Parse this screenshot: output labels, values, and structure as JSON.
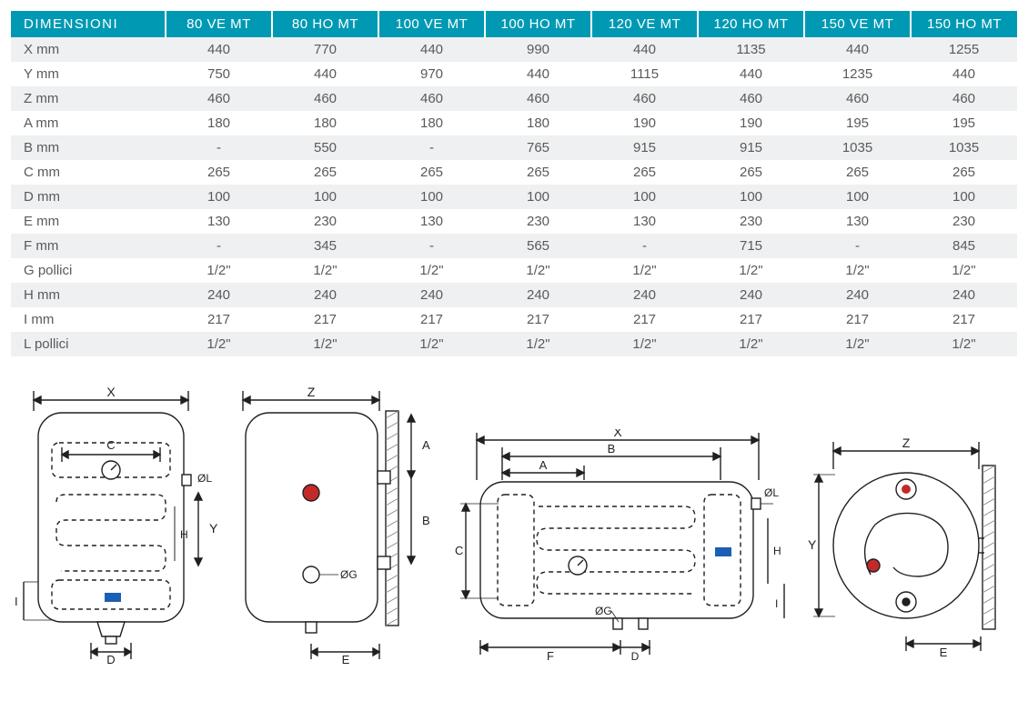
{
  "table": {
    "header_label": "DIMENSIONI",
    "columns": [
      "80 VE MT",
      "80 HO MT",
      "100 VE MT",
      "100 HO MT",
      "120 VE MT",
      "120 HO MT",
      "150 VE MT",
      "150 HO MT"
    ],
    "rows": [
      {
        "label": "X mm",
        "cells": [
          "440",
          "770",
          "440",
          "990",
          "440",
          "1135",
          "440",
          "1255"
        ]
      },
      {
        "label": "Y mm",
        "cells": [
          "750",
          "440",
          "970",
          "440",
          "1115",
          "440",
          "1235",
          "440"
        ]
      },
      {
        "label": "Z mm",
        "cells": [
          "460",
          "460",
          "460",
          "460",
          "460",
          "460",
          "460",
          "460"
        ]
      },
      {
        "label": "A mm",
        "cells": [
          "180",
          "180",
          "180",
          "180",
          "190",
          "190",
          "195",
          "195"
        ]
      },
      {
        "label": "B mm",
        "cells": [
          "-",
          "550",
          "-",
          "765",
          "915",
          "915",
          "1035",
          "1035"
        ]
      },
      {
        "label": "C mm",
        "cells": [
          "265",
          "265",
          "265",
          "265",
          "265",
          "265",
          "265",
          "265"
        ]
      },
      {
        "label": "D mm",
        "cells": [
          "100",
          "100",
          "100",
          "100",
          "100",
          "100",
          "100",
          "100"
        ]
      },
      {
        "label": "E mm",
        "cells": [
          "130",
          "230",
          "130",
          "230",
          "130",
          "230",
          "130",
          "230"
        ]
      },
      {
        "label": "F mm",
        "cells": [
          "-",
          "345",
          "-",
          "565",
          "-",
          "715",
          "-",
          "845"
        ]
      },
      {
        "label": "G pollici",
        "cells": [
          "1/2\"",
          "1/2\"",
          "1/2\"",
          "1/2\"",
          "1/2\"",
          "1/2\"",
          "1/2\"",
          "1/2\""
        ]
      },
      {
        "label": "H mm",
        "cells": [
          "240",
          "240",
          "240",
          "240",
          "240",
          "240",
          "240",
          "240"
        ]
      },
      {
        "label": "I mm",
        "cells": [
          "217",
          "217",
          "217",
          "217",
          "217",
          "217",
          "217",
          "217"
        ]
      },
      {
        "label": "L pollici",
        "cells": [
          "1/2\"",
          "1/2\"",
          "1/2\"",
          "1/2\"",
          "1/2\"",
          "1/2\"",
          "1/2\"",
          "1/2\""
        ]
      }
    ],
    "header_bg": "#0099b3",
    "row_bg_even": "#eef0f1",
    "row_bg_odd": "#ffffff",
    "col_first_width": 170,
    "col_other_width": 117
  },
  "diagrams": {
    "stroke": "#231f20",
    "fill": "#ffffff",
    "hatch": "#8a8a8a",
    "red": "#c22a2a",
    "blue_logo": "#1a5fb4",
    "labels": {
      "X": "X",
      "Y": "Y",
      "Z": "Z",
      "A": "A",
      "B": "B",
      "C": "C",
      "D": "D",
      "E": "E",
      "F": "F",
      "H": "H",
      "I": "I",
      "OL": "ØL",
      "OG": "ØG",
      "brand": "ISEA"
    }
  }
}
